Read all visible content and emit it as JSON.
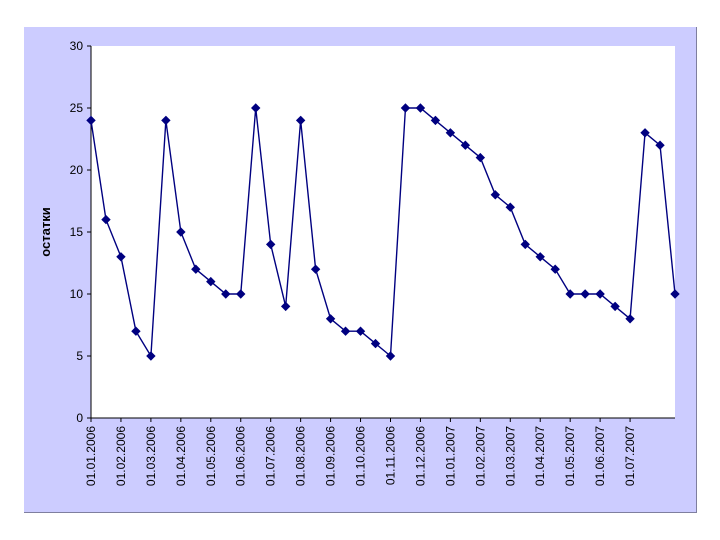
{
  "chart_data": {
    "type": "line",
    "title": "",
    "xlabel": "",
    "ylabel": "остатки",
    "ylim": [
      0,
      30
    ],
    "yticks": [
      0,
      5,
      10,
      15,
      20,
      25,
      30
    ],
    "x_tick_labels": [
      "01.01.2006",
      "01.02.2006",
      "01.03.2006",
      "01.04.2006",
      "01.05.2006",
      "01.06.2006",
      "01.07.2006",
      "01.08.2006",
      "01.09.2006",
      "01.10.2006",
      "01.11.2006",
      "01.12.2006",
      "01.01.2007",
      "01.02.2007",
      "01.03.2007",
      "01.04.2007",
      "01.05.2007",
      "01.06.2007",
      "01.07.2007"
    ],
    "grid": false,
    "legend": "none",
    "series": [
      {
        "values": [
          24,
          16,
          13,
          7,
          5,
          24,
          15,
          12,
          11,
          10,
          10,
          25,
          14,
          9,
          24,
          12,
          8,
          7,
          7,
          6,
          5,
          25,
          25,
          24,
          23,
          22,
          21,
          18,
          17,
          14,
          13,
          12,
          10,
          10,
          10,
          9,
          8,
          23,
          22,
          10
        ]
      }
    ],
    "colors": {
      "line": "#000080",
      "marker": "#000080",
      "plot_bg": "#ffffff",
      "chart_bg": "#ccccff",
      "axis": "#000000"
    }
  }
}
